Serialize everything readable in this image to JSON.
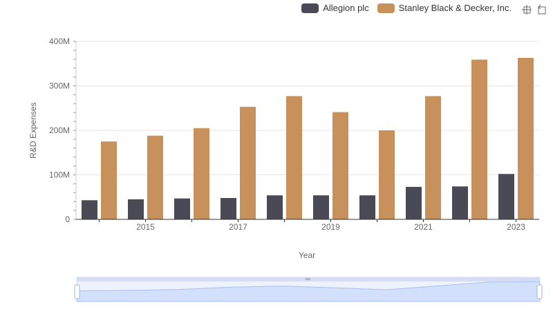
{
  "legend": [
    {
      "name": "Allegion plc",
      "color": "#4a4a56"
    },
    {
      "name": "Stanley Black & Decker, Inc.",
      "color": "#c8915c"
    }
  ],
  "toolbox": {
    "zoom_icon": "zoom-crosshair-icon",
    "restore_icon": "restore-icon"
  },
  "chart_data": {
    "type": "bar",
    "xlabel": "Year",
    "ylabel": "R&D Expenses",
    "categories": [
      "2014",
      "2015",
      "2016",
      "2017",
      "2018",
      "2019",
      "2020",
      "2021",
      "2022",
      "2023"
    ],
    "x_tick_labels": [
      "2015",
      "2017",
      "2019",
      "2021",
      "2023"
    ],
    "y_ticks": [
      "0",
      "100M",
      "200M",
      "300M",
      "400M"
    ],
    "ylim": [
      0,
      400000000
    ],
    "grid": true,
    "legend_position": "top-right",
    "series": [
      {
        "name": "Allegion plc",
        "color": "#4a4a56",
        "values": [
          43000000,
          45000000,
          47000000,
          48000000,
          54000000,
          54000000,
          54000000,
          73000000,
          74000000,
          102000000
        ]
      },
      {
        "name": "Stanley Black & Decker, Inc.",
        "color": "#c8915c",
        "values": [
          175000000,
          188000000,
          205000000,
          253000000,
          277000000,
          241000000,
          200000000,
          277000000,
          359000000,
          363000000
        ]
      }
    ]
  }
}
